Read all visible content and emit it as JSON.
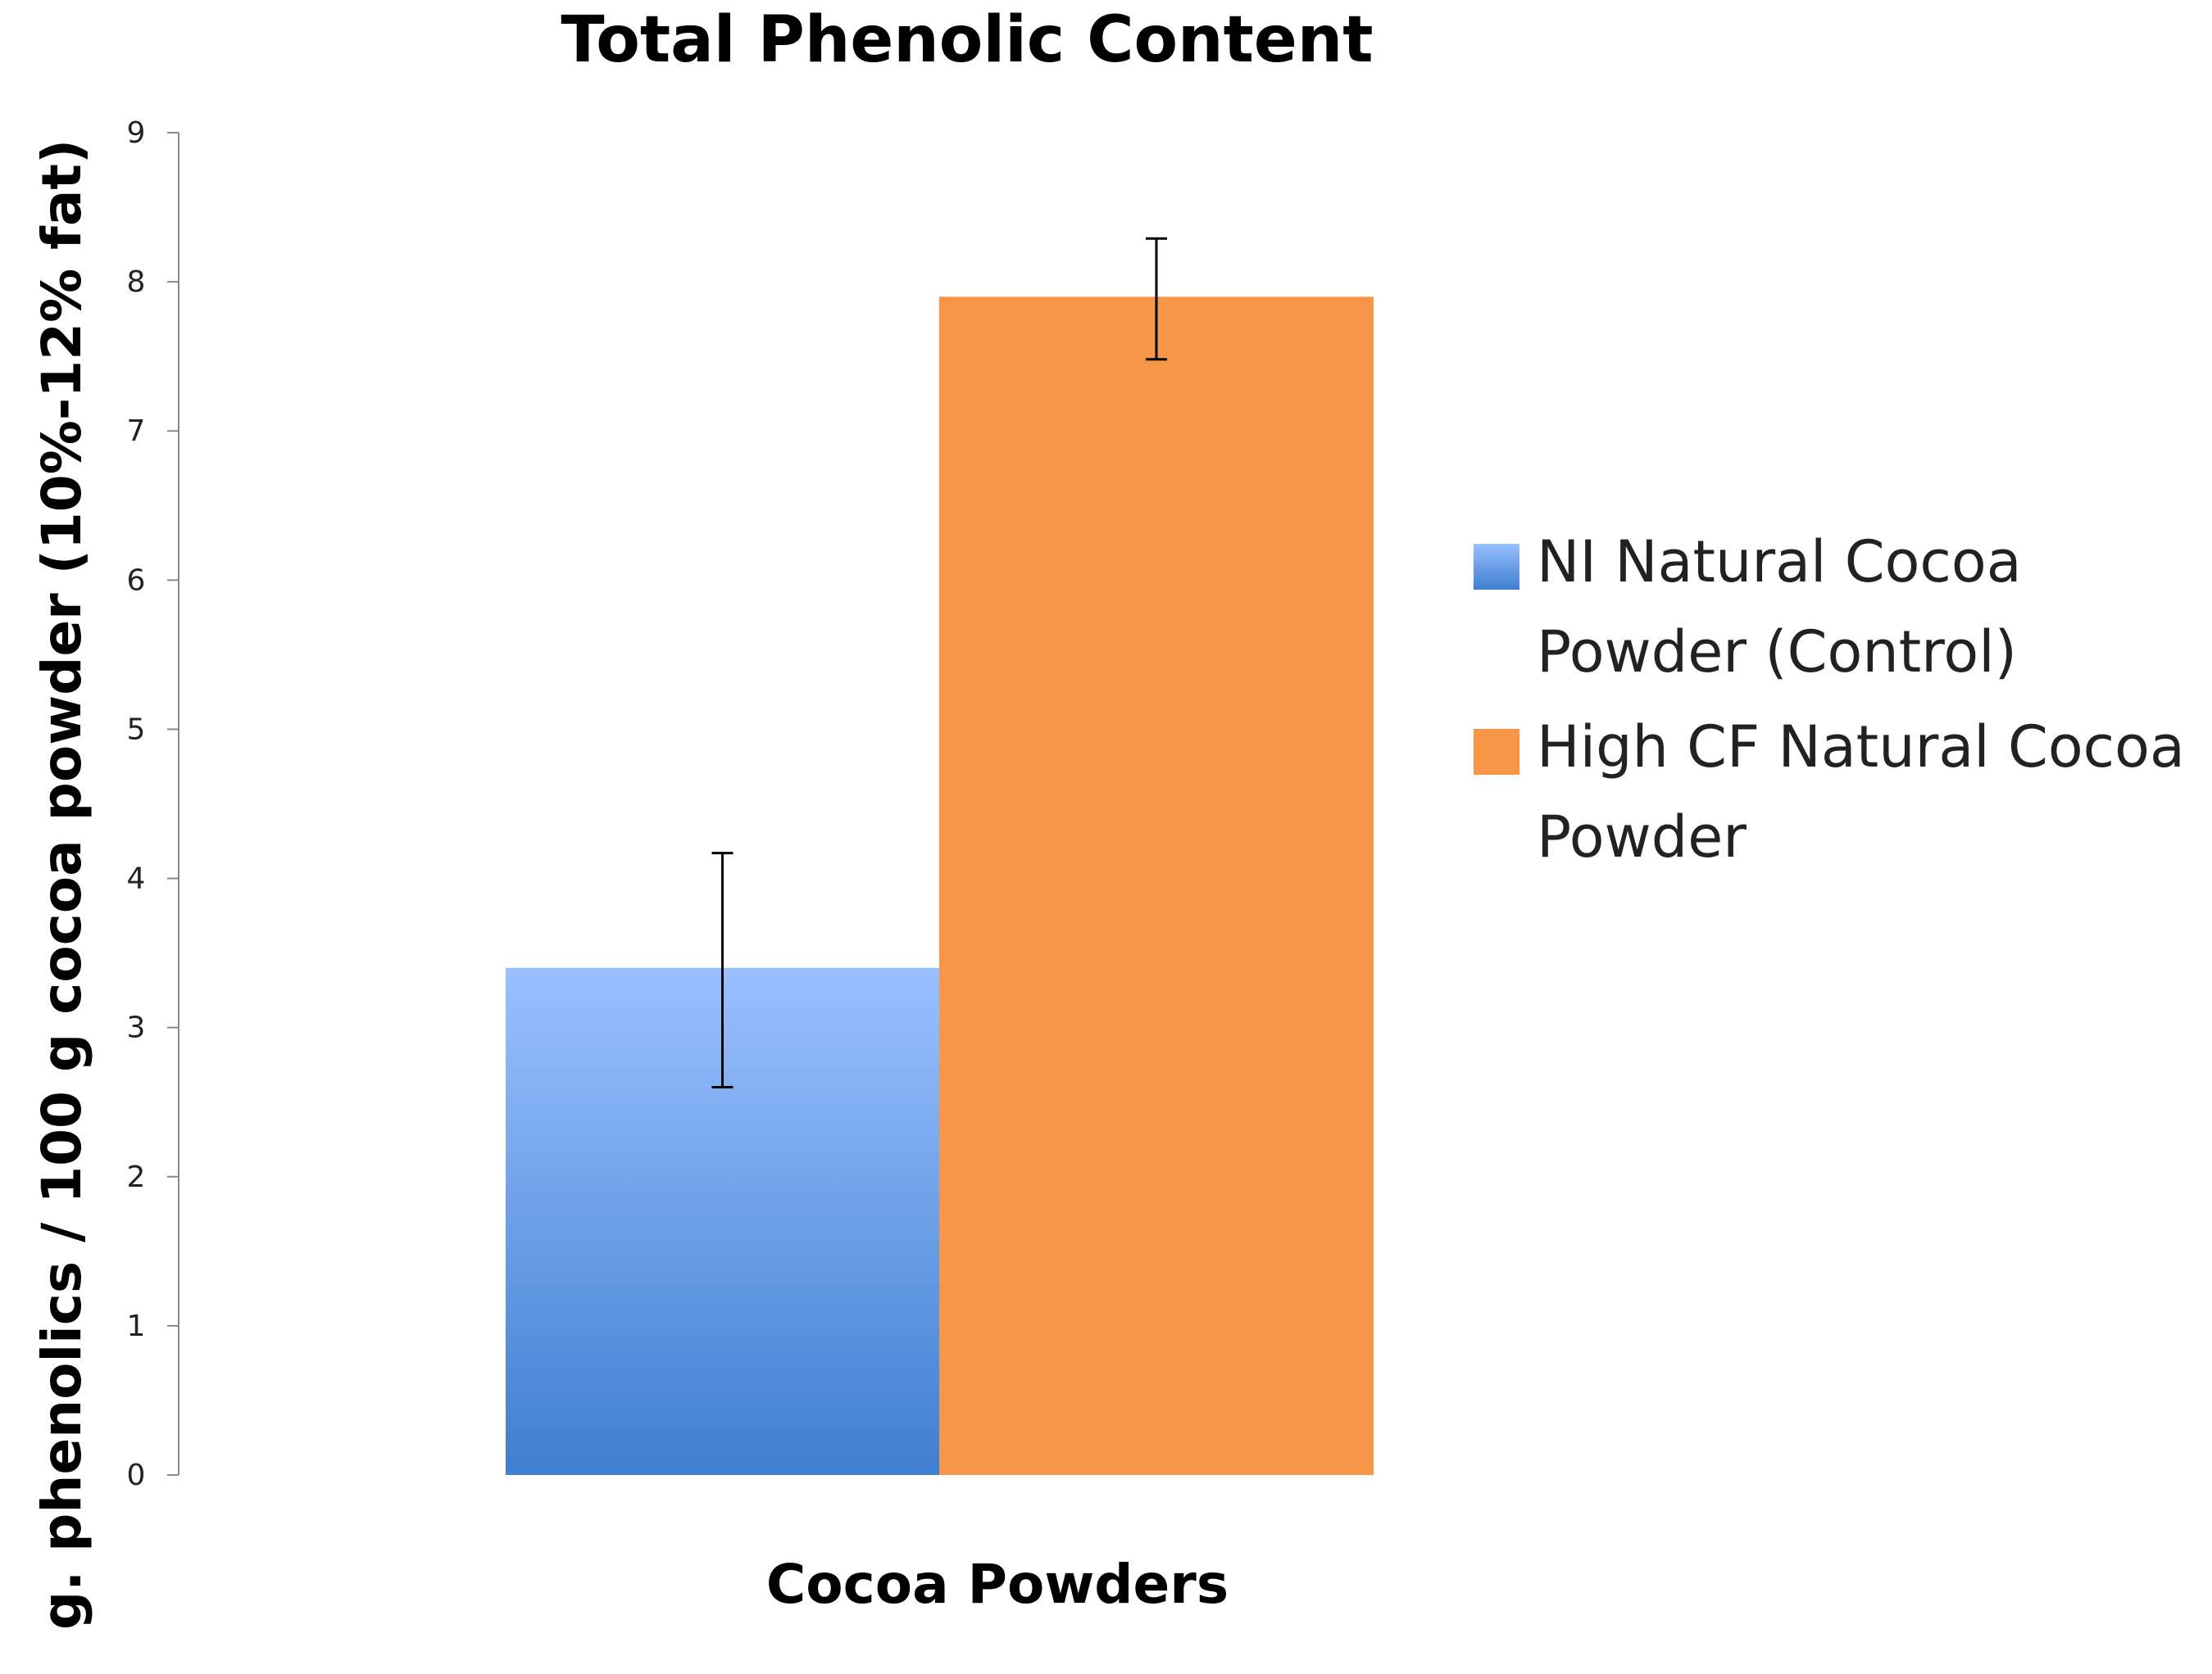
{
  "chart_data": {
    "type": "bar",
    "title": "Total Phenolic Content",
    "xlabel": "Cocoa Powders",
    "ylabel": "g. phenolics / 100 g cocoa powder (10%-12% fat)",
    "ylim": [
      0,
      9
    ],
    "yticks": [
      "0",
      "1",
      "2",
      "3",
      "4",
      "5",
      "6",
      "7",
      "8",
      "9"
    ],
    "grid": false,
    "legend_position": "right",
    "series": [
      {
        "name": "NI Natural Cocoa Powder (Control)",
        "legend_lines": [
          "NI Natural Cocoa",
          "Powder (Control)"
        ],
        "value": 3.4,
        "error_low": 2.6,
        "error_high": 4.17,
        "color_top": "#99c0ff",
        "color_bottom": "#3f7fcf"
      },
      {
        "name": "High CF Natural Cocoa Powder",
        "legend_lines": [
          "High CF Natural Cocoa",
          "Powder"
        ],
        "value": 7.9,
        "error_low": 7.48,
        "error_high": 8.29,
        "color_top": "#f79646",
        "color_bottom": "#f79646"
      }
    ]
  }
}
